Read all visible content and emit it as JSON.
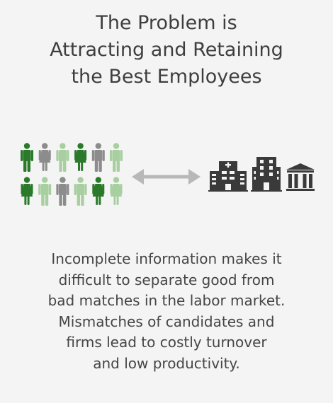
{
  "title": {
    "lines": [
      "The Problem is",
      "Attracting and Retaining",
      "the Best Employees"
    ]
  },
  "illustration": {
    "people_rows": [
      [
        "dark-green",
        "gray",
        "light-green",
        "dark-green",
        "gray",
        "light-green"
      ],
      [
        "dark-green",
        "light-green",
        "gray",
        "light-green",
        "dark-green",
        "light-green"
      ]
    ],
    "people_genders": [
      [
        "male",
        "female",
        "male",
        "female",
        "male",
        "male"
      ],
      [
        "female",
        "male",
        "male",
        "male",
        "female",
        "female"
      ]
    ],
    "arrow": "double-arrow-icon",
    "buildings": [
      "hospital-icon",
      "office-building-icon",
      "bank-icon"
    ]
  },
  "description": {
    "lines": [
      "Incomplete information makes it",
      "difficult to separate good from",
      "bad matches in the labor market.",
      "Mismatches of candidates and",
      "firms lead to costly turnover",
      "and low productivity."
    ]
  },
  "colors": {
    "background": "#f4f4f4",
    "dark-green": "#2b7a2b",
    "light-green": "#a8cfa0",
    "gray": "#8c8c8c",
    "arrow": "#b8b8b8",
    "building": "#3a3a3a",
    "text": "#444444"
  }
}
